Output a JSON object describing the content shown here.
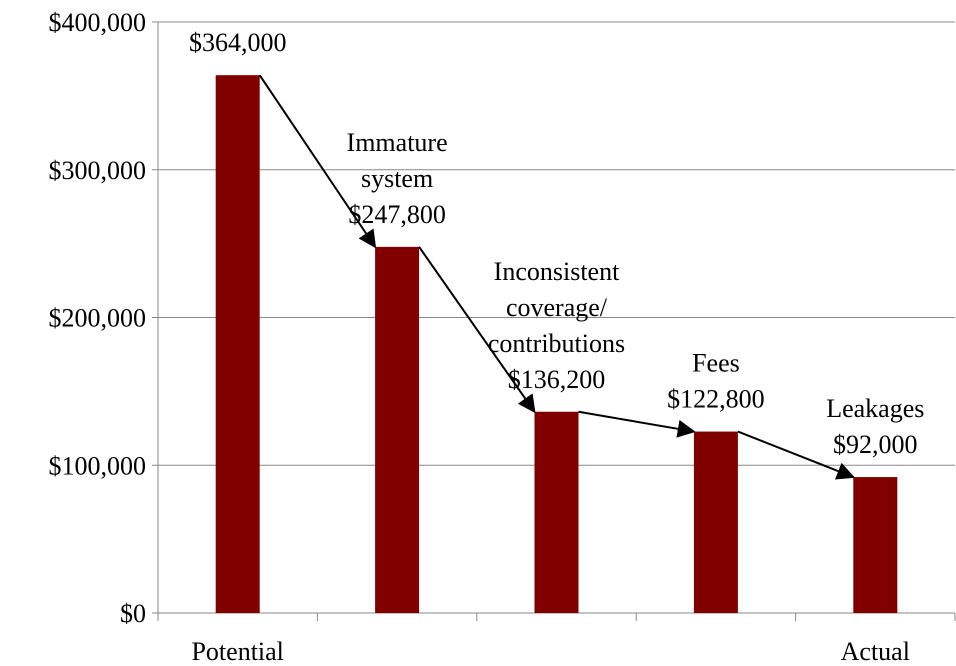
{
  "chart_data": {
    "type": "bar",
    "categories": [
      "Potential",
      null,
      null,
      null,
      "Actual"
    ],
    "values": [
      364000,
      247800,
      136200,
      122800,
      92000
    ],
    "value_labels": [
      "$364,000",
      "$247,800",
      "$136,200",
      "$122,800",
      "$92,000"
    ],
    "annotations": [
      null,
      [
        "Immature",
        "system"
      ],
      [
        "Inconsistent",
        "coverage/",
        "contributions"
      ],
      [
        "Fees"
      ],
      [
        "Leakages"
      ]
    ],
    "color": "#800000",
    "ylim": [
      0,
      400000
    ],
    "yticks": [
      {
        "value": 0,
        "label": "$0"
      },
      {
        "value": 100000,
        "label": "$100,000"
      },
      {
        "value": 200000,
        "label": "$200,000"
      },
      {
        "value": 300000,
        "label": "$300,000"
      },
      {
        "value": 400000,
        "label": "$400,000"
      }
    ],
    "grid": true
  }
}
